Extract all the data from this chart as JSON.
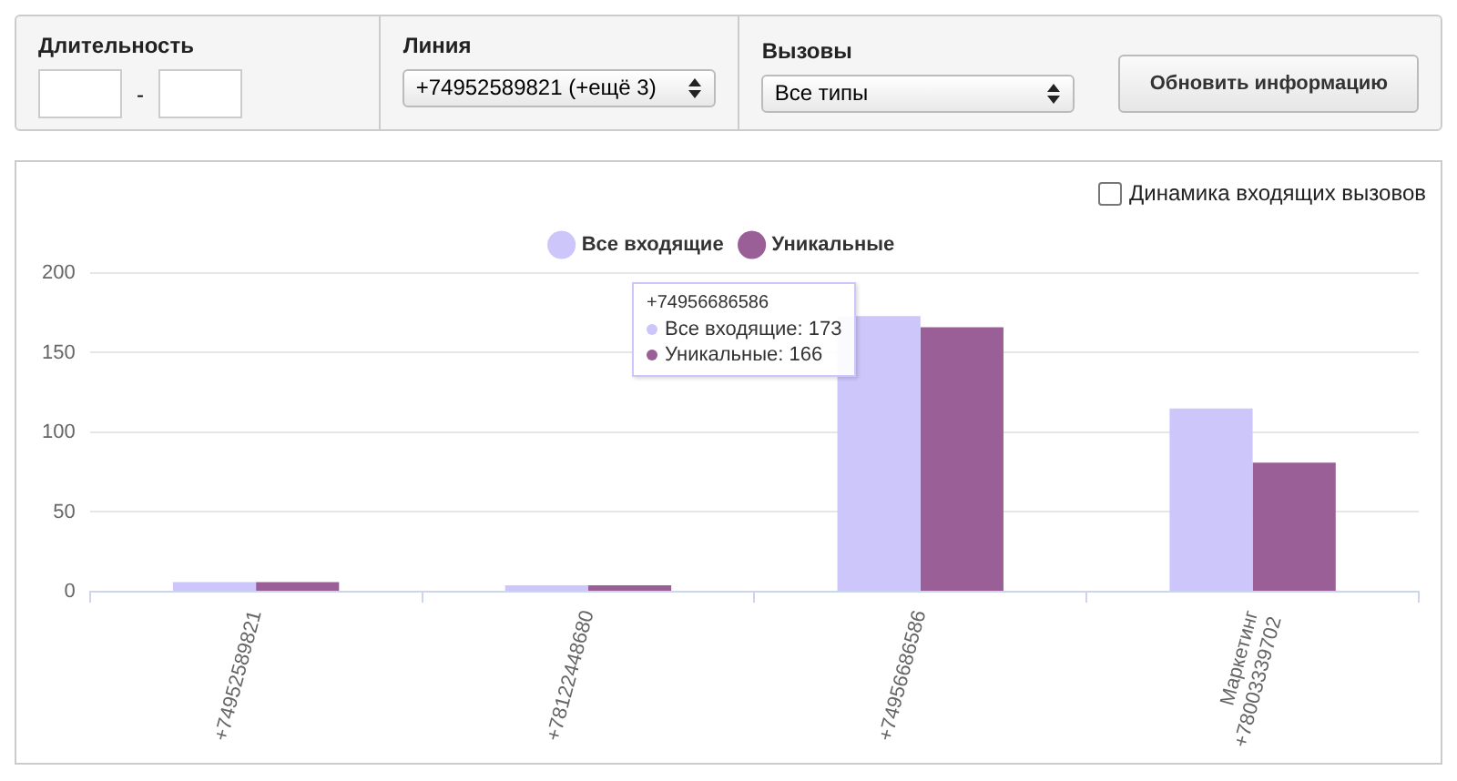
{
  "chart_data": {
    "type": "bar",
    "categories": [
      "+74952589821",
      "+78122448680",
      "+74956686586",
      "Маркетинг +78003339702"
    ],
    "series": [
      {
        "name": "Все входящие",
        "color": "#ccc6fa",
        "values": [
          6,
          4,
          173,
          115
        ]
      },
      {
        "name": "Уникальные",
        "color": "#9a5f96",
        "values": [
          6,
          4,
          166,
          81
        ]
      }
    ],
    "ylim": [
      0,
      200
    ],
    "yticks": [
      0,
      50,
      100,
      150,
      200
    ],
    "grid": "y",
    "legend": "top",
    "annotations": [
      "Длительность",
      "-",
      "Линия",
      "+74952589821 (+ещё 3)",
      "Вызовы",
      "Все типы",
      "Обновить информацию",
      "Динамика входящих вызовов",
      "+74956686586",
      "Все входящие: 173",
      "Уникальные: 166"
    ]
  }
}
